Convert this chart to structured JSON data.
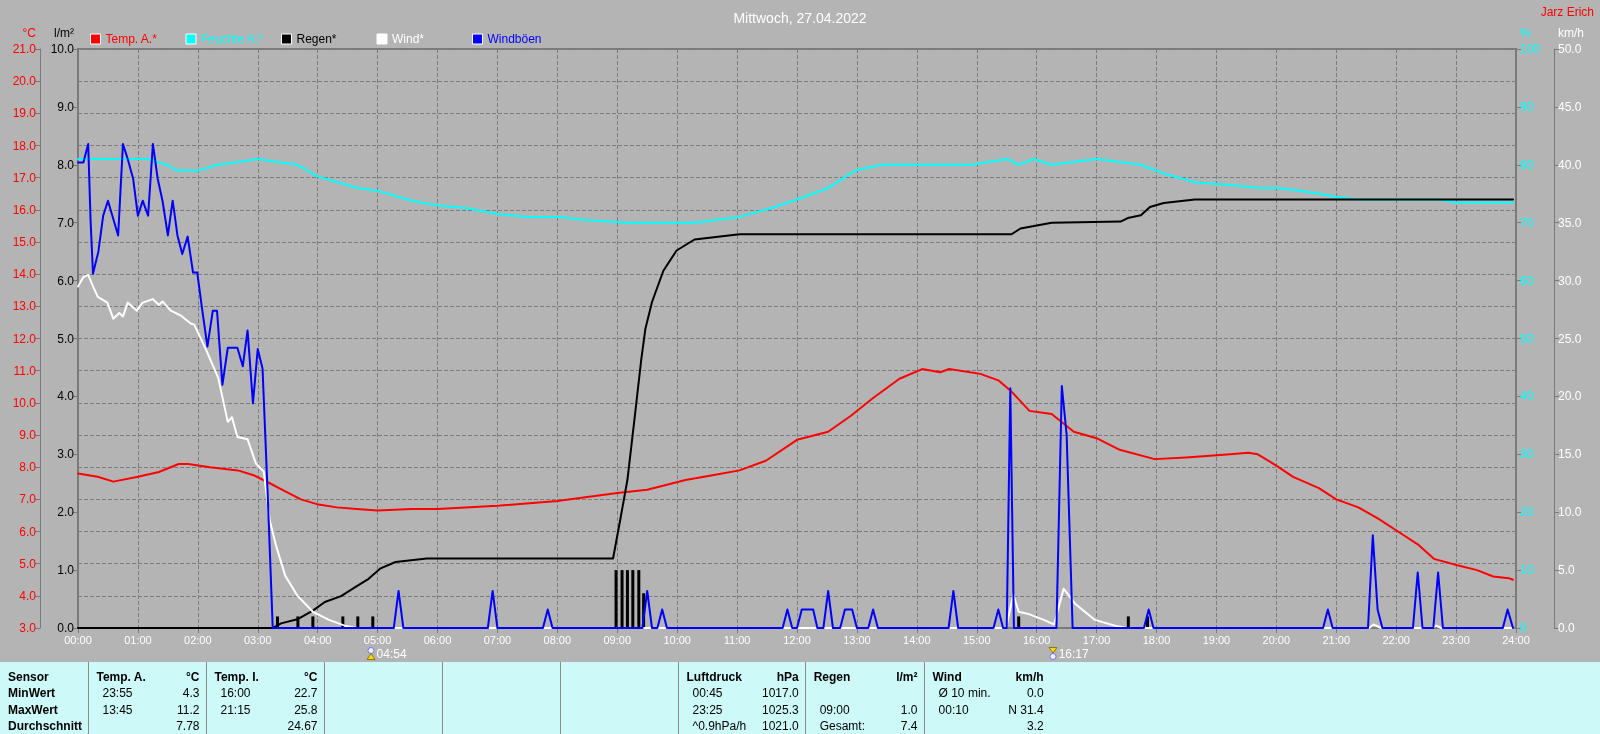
{
  "chart_data": [
    {
      "type": "line",
      "title": "Mittwoch, 27.04.2022",
      "annotations": [
        "Jarz Erich",
        "04:54",
        "16:17"
      ],
      "xlim": [
        0,
        24
      ],
      "xticks": [
        {
          "value": 0,
          "label": "00:00"
        },
        {
          "value": 1,
          "label": "01:00"
        },
        {
          "value": 2,
          "label": "02:00"
        },
        {
          "value": 3,
          "label": "03:00"
        },
        {
          "value": 4,
          "label": "04:00"
        },
        {
          "value": 5,
          "label": "05:00"
        },
        {
          "value": 6,
          "label": "06:00"
        },
        {
          "value": 7,
          "label": "07:00"
        },
        {
          "value": 8,
          "label": "08:00"
        },
        {
          "value": 9,
          "label": "09:00"
        },
        {
          "value": 10,
          "label": "10:00"
        },
        {
          "value": 11,
          "label": "11:00"
        },
        {
          "value": 12,
          "label": "12:00"
        },
        {
          "value": 13,
          "label": "13:00"
        },
        {
          "value": 14,
          "label": "14:00"
        },
        {
          "value": 15,
          "label": "15:00"
        },
        {
          "value": 16,
          "label": "16:00"
        },
        {
          "value": 17,
          "label": "17:00"
        },
        {
          "value": 18,
          "label": "18:00"
        },
        {
          "value": 19,
          "label": "19:00"
        },
        {
          "value": 20,
          "label": "20:00"
        },
        {
          "value": 21,
          "label": "21:00"
        },
        {
          "value": 22,
          "label": "22:00"
        },
        {
          "value": 23,
          "label": "23:00"
        },
        {
          "value": 24,
          "label": "24:00"
        }
      ],
      "ylabel": "°C",
      "ylim": [
        3,
        21
      ],
      "yticks": [
        {
          "value": 3,
          "label": "3.0"
        },
        {
          "value": 4,
          "label": "4.0"
        },
        {
          "value": 5,
          "label": "5.0"
        },
        {
          "value": 6,
          "label": "6.0"
        },
        {
          "value": 7,
          "label": "7.0"
        },
        {
          "value": 8,
          "label": "8.0"
        },
        {
          "value": 9,
          "label": "9.0"
        },
        {
          "value": 10,
          "label": "10.0"
        },
        {
          "value": 11,
          "label": "11.0"
        },
        {
          "value": 12,
          "label": "12.0"
        },
        {
          "value": 13,
          "label": "13.0"
        },
        {
          "value": 14,
          "label": "14.0"
        },
        {
          "value": 15,
          "label": "15.0"
        },
        {
          "value": 16,
          "label": "16.0"
        },
        {
          "value": 17,
          "label": "17.0"
        },
        {
          "value": 18,
          "label": "18.0"
        },
        {
          "value": 19,
          "label": "19.0"
        },
        {
          "value": 20,
          "label": "20.0"
        },
        {
          "value": 21,
          "label": "21.0"
        }
      ],
      "y2label": "l/m²",
      "y2lim": [
        0,
        10
      ],
      "y2ticks": [
        {
          "value": 0,
          "label": "0.0"
        },
        {
          "value": 1,
          "label": "1.0"
        },
        {
          "value": 2,
          "label": "2.0"
        },
        {
          "value": 3,
          "label": "3.0"
        },
        {
          "value": 4,
          "label": "4.0"
        },
        {
          "value": 5,
          "label": "5.0"
        },
        {
          "value": 6,
          "label": "6.0"
        },
        {
          "value": 7,
          "label": "7.0"
        },
        {
          "value": 8,
          "label": "8.0"
        },
        {
          "value": 9,
          "label": "9.0"
        },
        {
          "value": 10,
          "label": "10.0"
        }
      ],
      "y3label": "%",
      "y3lim": [
        0,
        100
      ],
      "y3ticks": [
        0,
        10,
        20,
        30,
        40,
        50,
        60,
        70,
        80,
        90,
        100
      ],
      "grid": true,
      "legend": "top left",
      "marker": "none",
      "series": [
        {
          "name": "Temp. A.*",
          "color": "#ff0000",
          "x": [
            0,
            0.33,
            0.59,
            1,
            1.35,
            1.68,
            1.84,
            2.2,
            2.67,
            2.93,
            3.2,
            3.46,
            3.72,
            3.99,
            4.32,
            4.65,
            5,
            5.57,
            6,
            7,
            8,
            9,
            9.5,
            10.14,
            10.59,
            11.04,
            11.48,
            12,
            12.52,
            12.9,
            13.27,
            13.71,
            14.09,
            14.39,
            14.54,
            15.06,
            15.36,
            15.58,
            15.88,
            16.25,
            16.62,
            17,
            17.37,
            17.97,
            18.49,
            19.23,
            19.53,
            19.69,
            20,
            20.28,
            20.71,
            21,
            21.37,
            21.7,
            22.03,
            22.36,
            22.63,
            23.02,
            23.35,
            23.62,
            23.88,
            23.95
          ],
          "values": [
            7.8,
            7.7,
            7.55,
            7.7,
            7.85,
            8.1,
            8.1,
            8.0,
            7.9,
            7.75,
            7.5,
            7.25,
            7.0,
            6.85,
            6.75,
            6.7,
            6.65,
            6.7,
            6.7,
            6.8,
            6.95,
            7.2,
            7.3,
            7.6,
            7.75,
            7.9,
            8.2,
            8.85,
            9.1,
            9.6,
            10.15,
            10.75,
            11.05,
            10.95,
            11.05,
            10.9,
            10.7,
            10.35,
            9.75,
            9.65,
            9.1,
            8.9,
            8.55,
            8.25,
            8.3,
            8.4,
            8.45,
            8.4,
            8.05,
            7.7,
            7.35,
            7.0,
            6.75,
            6.4,
            6.0,
            5.6,
            5.15,
            4.95,
            4.8,
            4.6,
            4.55,
            4.5
          ]
        },
        {
          "name": "Feuchte A.*",
          "color": "#00ffff",
          "axis": "y3",
          "x": [
            0,
            0.67,
            1,
            1.17,
            1.48,
            1.67,
            2,
            2.34,
            2.67,
            3,
            3.33,
            3.66,
            4,
            4.33,
            4.67,
            5,
            5.5,
            5.72,
            6,
            6.5,
            7,
            7.5,
            8.05,
            8.42,
            9.17,
            10.29,
            11.04,
            11.56,
            12,
            12.52,
            12.97,
            13.41,
            14.76,
            14.91,
            15.51,
            15.7,
            15.95,
            16.25,
            17,
            17.74,
            18.12,
            18.64,
            19.23,
            19.72,
            20,
            20.38,
            20.71,
            21,
            21.37,
            22,
            22.69,
            23,
            23.35,
            23.68,
            23.95
          ],
          "values": [
            81,
            81,
            81,
            81,
            80,
            79,
            79,
            80,
            80.5,
            81,
            80.5,
            80,
            78,
            77,
            76,
            75.5,
            74,
            73.5,
            73,
            72.5,
            71.5,
            71,
            71,
            70.5,
            70,
            70,
            71,
            72.5,
            74,
            76,
            79,
            80,
            80,
            80,
            81,
            80,
            81,
            80,
            81,
            80,
            78.5,
            77,
            76.5,
            76,
            76,
            75.5,
            75,
            74.5,
            74,
            74,
            74,
            73.5,
            73.5,
            73.5,
            73.5
          ]
        },
        {
          "name": "Regen*",
          "color": "#000000",
          "axis": "y2",
          "x": [
            0,
            3.25,
            3.39,
            3.66,
            3.92,
            4.12,
            4.39,
            4.62,
            4.85,
            5.05,
            5.3,
            5.82,
            8.93,
            9.05,
            9.17,
            9.29,
            9.4,
            9.47,
            9.58,
            9.77,
            9.99,
            10.29,
            11.04,
            15.58,
            15.73,
            16.25,
            17.4,
            17.52,
            17.74,
            17.89,
            18.12,
            18.64,
            23.95
          ],
          "values": [
            0,
            0,
            0.08,
            0.15,
            0.3,
            0.45,
            0.55,
            0.7,
            0.85,
            1.03,
            1.14,
            1.2,
            1.2,
            1.87,
            2.56,
            3.63,
            4.63,
            5.17,
            5.63,
            6.17,
            6.52,
            6.71,
            6.8,
            6.8,
            6.9,
            7.0,
            7.02,
            7.08,
            7.13,
            7.27,
            7.34,
            7.4,
            7.4
          ]
        },
        {
          "type": "bar",
          "color": "#000000",
          "axis": "y2",
          "x": [
            3.33,
            3.67,
            3.92,
            4.42,
            4.67,
            4.92,
            8.98,
            9.08,
            9.17,
            9.26,
            9.36,
            9.44,
            15.7,
            17.53,
            17.85
          ],
          "values": [
            0.2,
            0.2,
            0.2,
            0.2,
            0.2,
            0.2,
            1.0,
            1.0,
            1.0,
            1.0,
            1.0,
            0.6,
            0.2,
            0.2,
            0.2
          ]
        }
      ]
    },
    {
      "type": "line",
      "xlim": [
        0,
        24
      ],
      "tick_labels": "y",
      "ylabel": "km/h",
      "ylim": [
        0,
        50
      ],
      "yticks": [
        {
          "value": 0,
          "label": "0.0"
        },
        {
          "value": 5,
          "label": "5.0"
        },
        {
          "value": 10,
          "label": "10.0"
        },
        {
          "value": 15,
          "label": "15.0"
        },
        {
          "value": 20,
          "label": "20.0"
        },
        {
          "value": 25,
          "label": "25.0"
        },
        {
          "value": 30,
          "label": "30.0"
        },
        {
          "value": 35,
          "label": "35.0"
        },
        {
          "value": 40,
          "label": "40.0"
        },
        {
          "value": 45,
          "label": "45.0"
        },
        {
          "value": 50,
          "label": "50.0"
        }
      ],
      "legend": "top left",
      "marker": "none",
      "series": [
        {
          "name": "Wind*",
          "color": "#ffffff",
          "x": [
            0,
            0.09,
            0.17,
            0.26,
            0.33,
            0.49,
            0.59,
            0.69,
            0.75,
            0.83,
            0.98,
            1.08,
            1.25,
            1.35,
            1.41,
            1.55,
            1.71,
            1.88,
            1.94,
            2.14,
            2.34,
            2.5,
            2.57,
            2.66,
            2.83,
            2.97,
            3.1,
            3.2,
            3.3,
            3.46,
            3.66,
            3.92,
            4.19,
            4.45,
            4.65,
            15.49,
            15.61,
            15.7,
            15.87,
            16.12,
            16.29,
            16.45,
            16.64,
            16.97,
            17.31,
            17.5,
            21.55,
            21.62,
            21.75,
            22.6,
            22.67,
            22.75,
            23.95
          ],
          "values": [
            29.5,
            30.3,
            30.5,
            29.4,
            28.6,
            28.1,
            26.7,
            27.2,
            26.9,
            28.1,
            27.4,
            28.1,
            28.4,
            27.9,
            28.2,
            27.4,
            27.0,
            26.3,
            26.2,
            24.0,
            21.6,
            17.8,
            18.2,
            16.5,
            16.3,
            14.2,
            13.5,
            9.3,
            7.2,
            4.5,
            2.8,
            1.4,
            0.7,
            0.2,
            0,
            0,
            2.9,
            1.4,
            1.2,
            0.7,
            0.3,
            3.4,
            2.1,
            0.7,
            0.2,
            0,
            0,
            0.3,
            0,
            0,
            0.2,
            0,
            0
          ]
        },
        {
          "name": "Windböen",
          "color": "#0000ff",
          "x": [
            0,
            0.09,
            0.17,
            0.21,
            0.25,
            0.34,
            0.42,
            0.5,
            0.67,
            0.75,
            0.83,
            0.92,
            1.0,
            1.08,
            1.17,
            1.25,
            1.33,
            1.41,
            1.5,
            1.58,
            1.66,
            1.74,
            1.83,
            1.92,
            1.99,
            2.07,
            2.16,
            2.25,
            2.32,
            2.41,
            2.5,
            2.58,
            2.66,
            2.75,
            2.83,
            2.92,
            3.0,
            3.08,
            3.17,
            3.25,
            5.27,
            5.35,
            5.43,
            6.84,
            6.92,
            7.0,
            7.76,
            7.84,
            7.92,
            9.42,
            9.5,
            9.58,
            9.67,
            9.75,
            9.83,
            11.76,
            11.84,
            11.92,
            12.0,
            12.08,
            12.27,
            12.34,
            12.44,
            12.52,
            12.6,
            12.72,
            12.8,
            12.92,
            13.0,
            13.19,
            13.27,
            13.35,
            14.53,
            14.61,
            14.69,
            15.28,
            15.36,
            15.44,
            15.5,
            15.56,
            15.62,
            16.33,
            16.42,
            16.5,
            16.6,
            17.79,
            17.87,
            17.95,
            20.78,
            20.86,
            20.94,
            21.53,
            21.61,
            21.69,
            21.77,
            22.28,
            22.36,
            22.44,
            22.62,
            22.7,
            22.78,
            23.78,
            23.86,
            23.95
          ],
          "values": [
            40.2,
            40.2,
            41.8,
            35.2,
            30.6,
            32.5,
            35.6,
            36.9,
            33.9,
            41.8,
            40.5,
            38.8,
            35.6,
            36.9,
            35.6,
            41.8,
            38.8,
            36.9,
            33.9,
            36.9,
            33.9,
            32.3,
            33.8,
            30.7,
            30.7,
            27.6,
            24.3,
            27.4,
            27.4,
            21.0,
            24.2,
            24.2,
            24.2,
            22.6,
            25.7,
            19.4,
            24.1,
            22.4,
            11.0,
            0,
            0,
            3.2,
            0,
            0,
            3.2,
            0,
            0,
            1.6,
            0,
            0,
            3.2,
            0,
            0,
            1.6,
            0,
            0,
            1.6,
            0,
            0,
            1.6,
            1.6,
            0,
            0,
            3.2,
            0,
            0,
            1.6,
            1.6,
            0,
            0,
            1.6,
            0,
            0,
            3.2,
            0,
            0,
            1.6,
            0,
            0,
            20.7,
            0,
            0,
            20.9,
            16.7,
            0,
            0,
            1.6,
            0,
            0,
            1.6,
            0,
            0,
            8.0,
            1.6,
            0,
            0,
            4.8,
            0,
            0,
            4.8,
            0,
            0,
            1.6,
            0
          ]
        }
      ]
    },
    {
      "type": "other",
      "cell_labels": [
        [
          "Sensor",
          "Temp. A.",
          "°C",
          "Temp. I.",
          "°C",
          null,
          null,
          null,
          null,
          null,
          null,
          "Luftdruck",
          "hPa",
          "Regen",
          "l/m²",
          "Wind",
          "km/h"
        ],
        [
          "MinWert",
          "23:55",
          "4.3",
          "16:00",
          "22.7",
          null,
          null,
          null,
          null,
          null,
          null,
          "00:45",
          "1017.0",
          null,
          null,
          "Ø 10 min.",
          "0.0"
        ],
        [
          "MaxWert",
          "13:45",
          "11.2",
          "21:15",
          "25.8",
          null,
          null,
          null,
          null,
          null,
          null,
          "23:25",
          "1025.3",
          "09:00",
          "1.0",
          "00:10",
          "N 31.4"
        ],
        [
          "Durchschnitt",
          null,
          "7.78",
          null,
          "24.67",
          null,
          null,
          null,
          null,
          null,
          null,
          "^0.9hPa/h",
          "1021.0",
          "Gesamt:",
          "7.4",
          null,
          "3.2"
        ]
      ]
    }
  ]
}
